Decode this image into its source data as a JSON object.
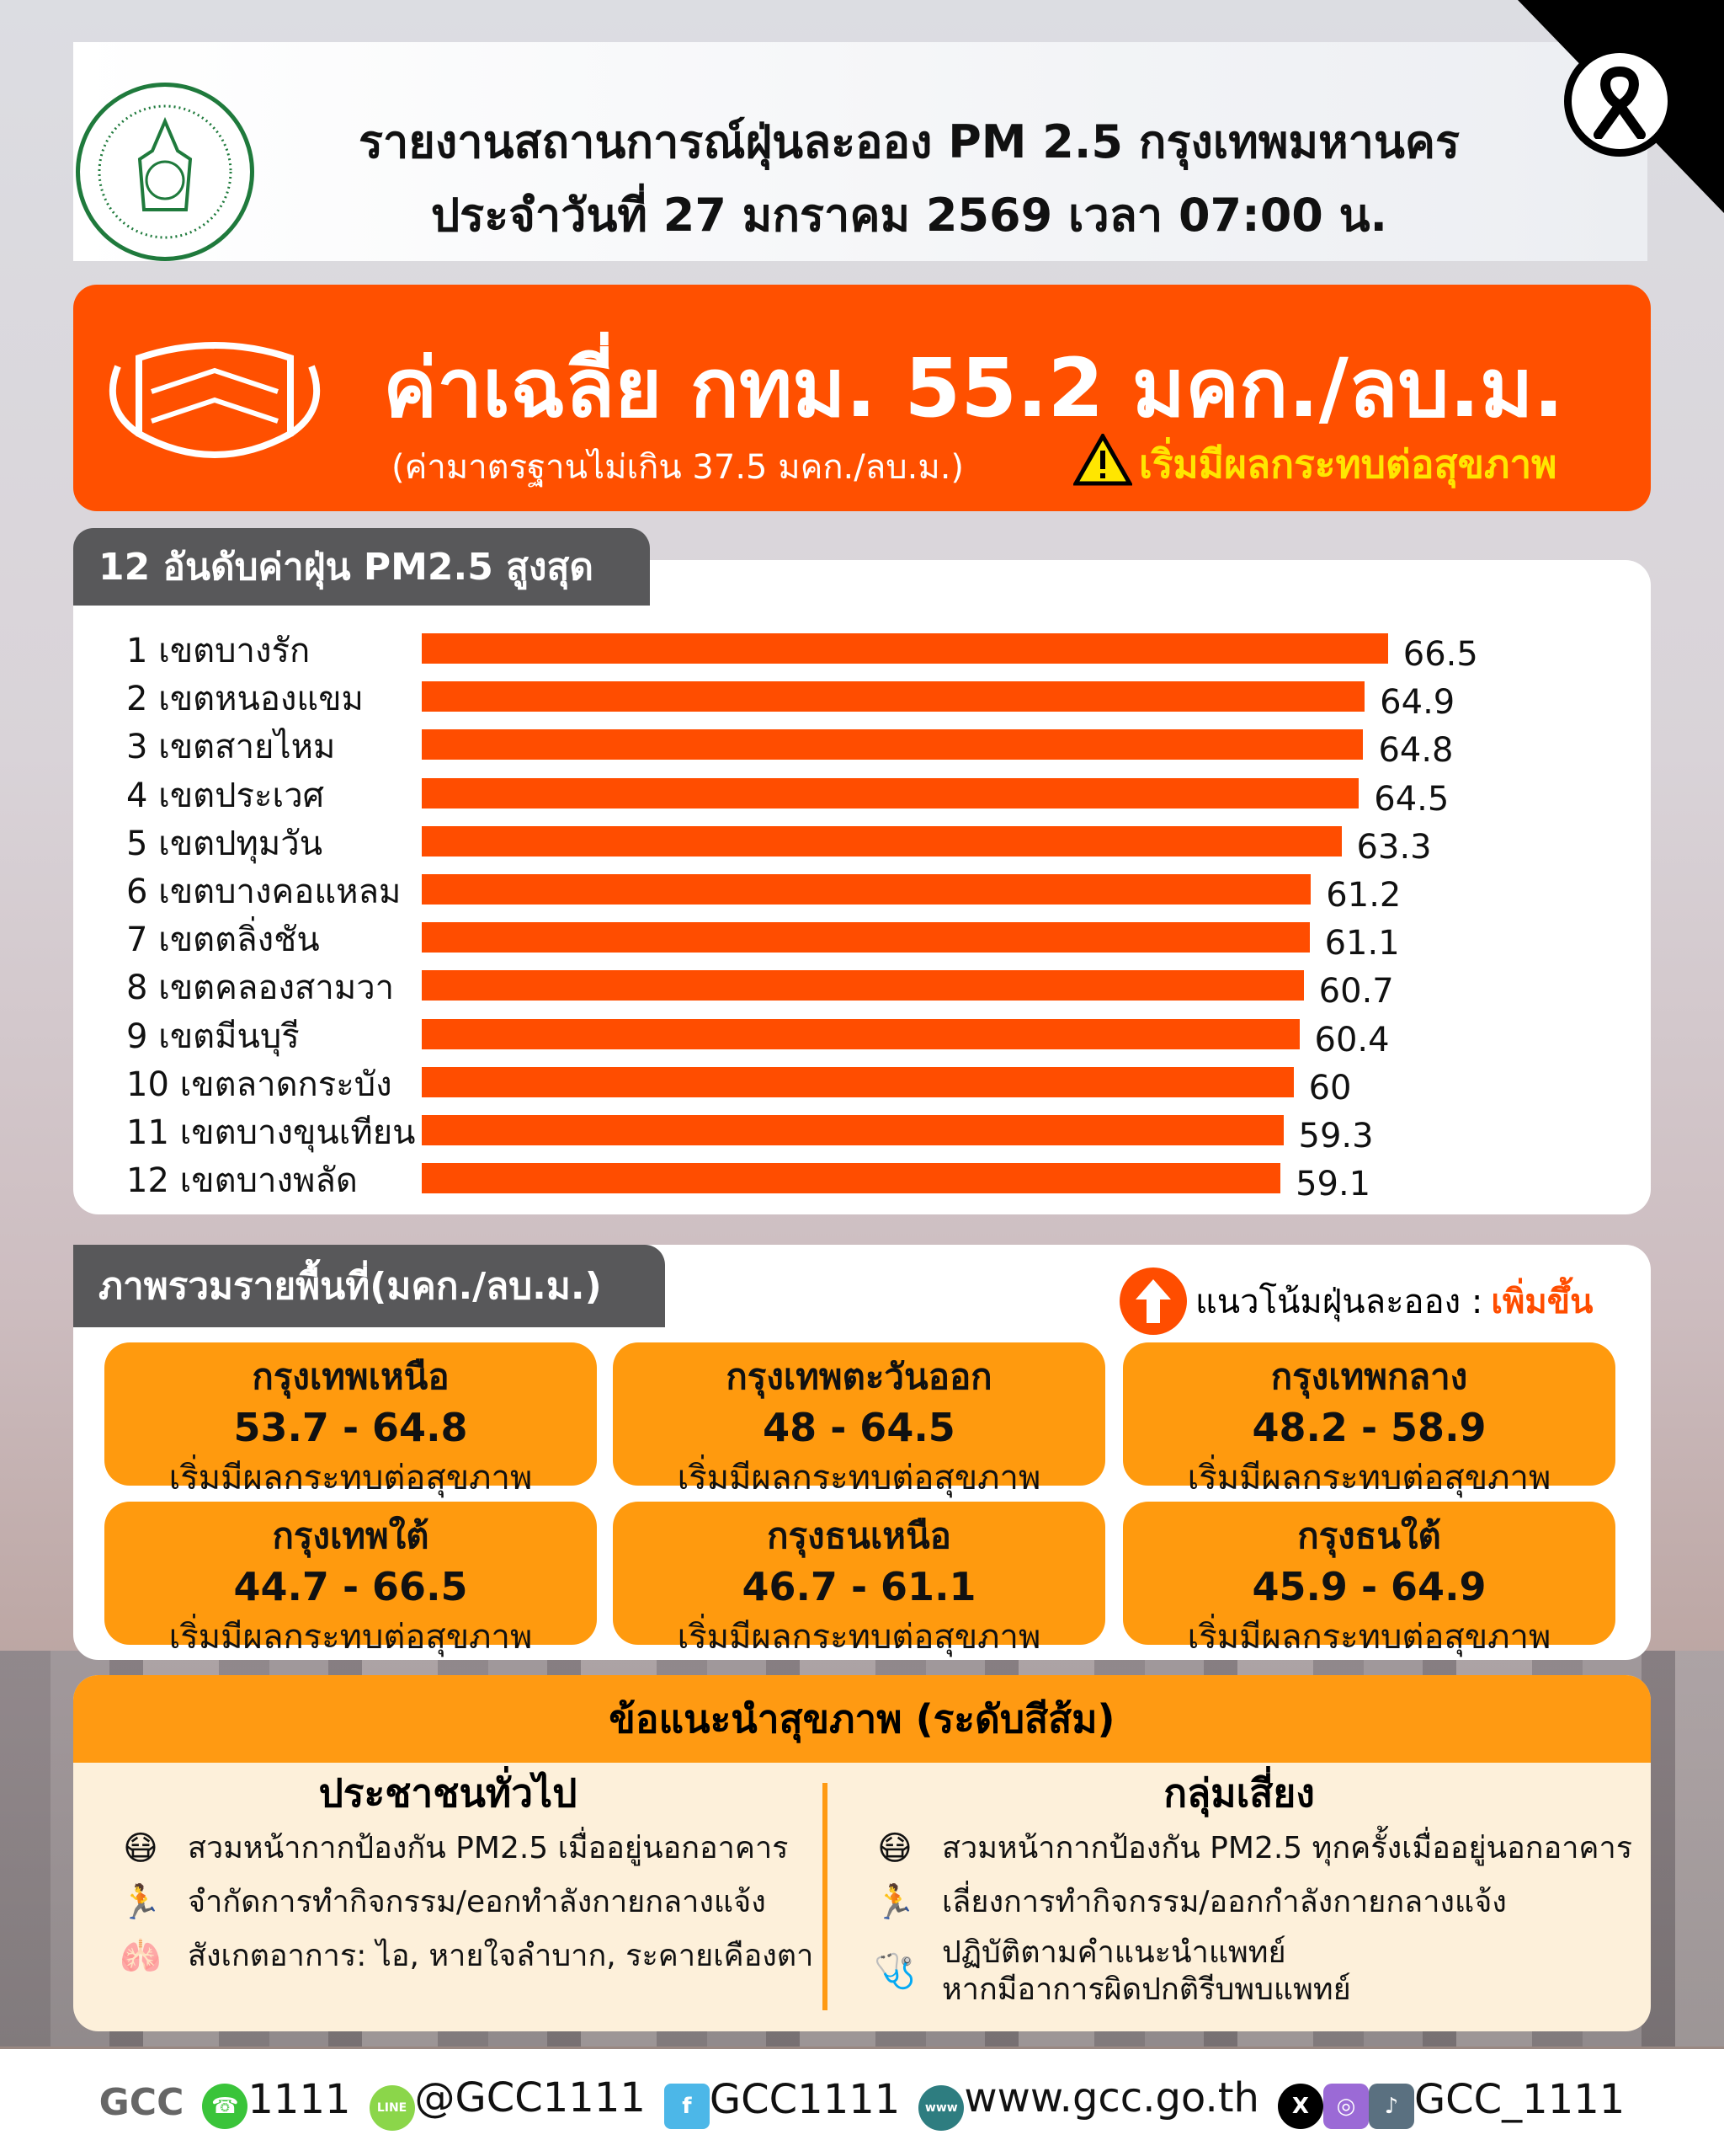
{
  "header": {
    "title_line1": "รายงานสถานการณ์ฝุ่นละออง PM 2.5 กรุงเทพมหานคร",
    "title_line2": "ประจำวันที่ 27 มกราคม 2569 เวลา 07:00 น."
  },
  "banner": {
    "average": "ค่าเฉลี่ย กทม. 55.2 มคก./ลบ.ม.",
    "standard": "(ค่ามาตรฐานไม่เกิน 37.5 มคก./ลบ.ม.)",
    "status": "เริ่มมีผลกระทบต่อสุขภาพ",
    "status_color": "#ffe600",
    "banner_color": "#ff5000"
  },
  "chart_data": {
    "type": "bar",
    "orientation": "horizontal",
    "title": "12 อันดับค่าฝุ่น PM2.5 สูงสุด",
    "categories": [
      "1 เขตบางรัก",
      "2 เขตหนองแขม",
      "3 เขตสายไหม",
      "4 เขตประเวศ",
      "5 เขตปทุมวัน",
      "6 เขตบางคอแหลม",
      "7 เขตตลิ่งชัน",
      "8 เขตคลองสามวา",
      "9 เขตมีนบุรี",
      "10 เขตลาดกระบัง",
      "11 เขตบางขุนเทียน",
      "12 เขตบางพลัด"
    ],
    "values": [
      66.5,
      64.9,
      64.8,
      64.5,
      63.3,
      61.2,
      61.1,
      60.7,
      60.4,
      60,
      59.3,
      59.1
    ],
    "value_labels": [
      "66.5",
      "64.9",
      "64.8",
      "64.5",
      "63.3",
      "61.2",
      "61.1",
      "60.7",
      "60.4",
      "60",
      "59.3",
      "59.1"
    ],
    "bar_color": "#ff4d00",
    "grid": false
  },
  "regions": {
    "title": "ภาพรวมรายพื้นที่(มคก./ลบ.ม.)",
    "trend_label": "แนวโน้มฝุ่นละออง :",
    "trend_value": "เพิ่มขึ้น",
    "trend_icon": "arrow-up-icon",
    "items": [
      {
        "name": "กรุงเทพเหนือ",
        "range": "53.7 - 64.8",
        "status": "เริ่มมีผลกระทบต่อสุขภาพ"
      },
      {
        "name": "กรุงเทพตะวันออก",
        "range": "48 - 64.5",
        "status": "เริ่มมีผลกระทบต่อสุขภาพ"
      },
      {
        "name": "กรุงเทพกลาง",
        "range": "48.2 - 58.9",
        "status": "เริ่มมีผลกระทบต่อสุขภาพ"
      },
      {
        "name": "กรุงเทพใต้",
        "range": "44.7 - 66.5",
        "status": "เริ่มมีผลกระทบต่อสุขภาพ"
      },
      {
        "name": "กรุงธนเหนือ",
        "range": "46.7 - 61.1",
        "status": "เริ่มมีผลกระทบต่อสุขภาพ"
      },
      {
        "name": "กรุงธนใต้",
        "range": "45.9 - 64.9",
        "status": "เริ่มมีผลกระทบต่อสุขภาพ"
      }
    ]
  },
  "health": {
    "title": "ข้อแนะนำสุขภาพ (ระดับสีส้ม)",
    "general": {
      "title": "ประชาชนทั่วไป",
      "tips": [
        "สวมหน้ากากป้องกัน PM2.5 เมื่ออยู่นอกอาคาร",
        "จำกัดการทำกิจกรรม/eอกทำลังกายกลางแจ้ง",
        "สังเกตอาการ: ไอ, หายใจลำบาก, ระคายเคืองตา"
      ]
    },
    "risk": {
      "title": "กลุ่มเสี่ยง",
      "tips": [
        "สวมหน้ากากป้องกัน PM2.5 ทุกครั้งเมื่ออยู่นอกอาคาร",
        "เลี่ยงการทำกิจกรรม/ออกกำลังกายกลางแจ้ง",
        "ปฏิบัติตามคำแนะนำแพทย์",
        "หากมีอาการผิดปกติรีบพบแพทย์"
      ]
    }
  },
  "footer": {
    "logo": "GCC 1111",
    "phone": "1111",
    "line": "@GCC1111",
    "facebook": "GCC1111",
    "website": "www.gcc.go.th",
    "social": "GCC_1111"
  }
}
